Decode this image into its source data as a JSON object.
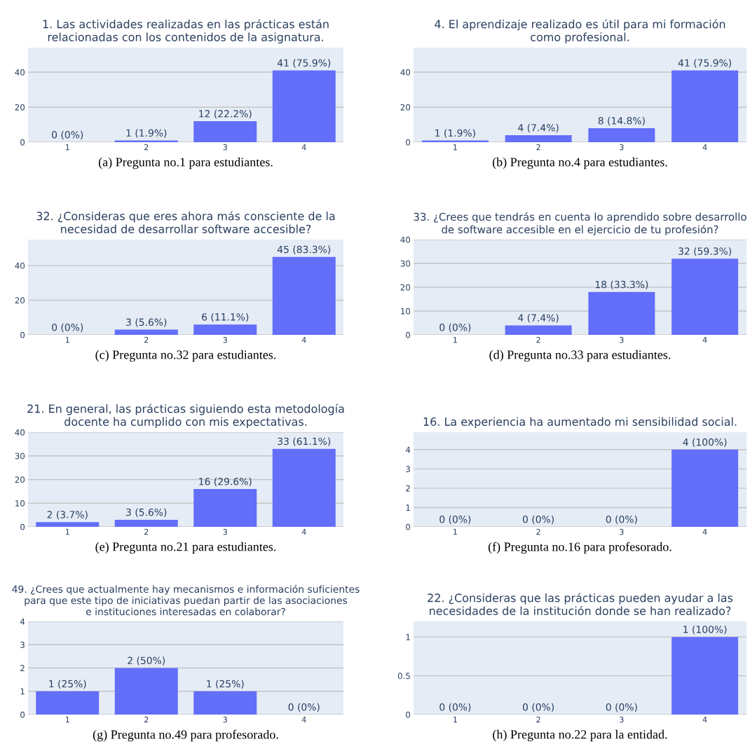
{
  "chart_data": [
    {
      "type": "bar",
      "title": "1. Las actividades realizadas en las prácticas están\nrelacionadas con los contenidos de la asignatura.",
      "categories": [
        "1",
        "2",
        "3",
        "4"
      ],
      "values": [
        0,
        1,
        12,
        41
      ],
      "value_labels": [
        "0 (0%)",
        "1 (1.9%)",
        "12 (22.2%)",
        "41 (75.9%)"
      ],
      "color": "#636efa",
      "ylim": [
        0,
        54
      ],
      "yticks": [
        0,
        20,
        40
      ],
      "grid": "y",
      "annotations": [
        "(a) Pregunta no.1 para estudiantes."
      ]
    },
    {
      "type": "bar",
      "title": "4. El aprendizaje realizado es útil para mi formación\ncomo profesional.",
      "categories": [
        "1",
        "2",
        "3",
        "4"
      ],
      "values": [
        1,
        4,
        8,
        41
      ],
      "value_labels": [
        "1 (1.9%)",
        "4 (7.4%)",
        "8 (14.8%)",
        "41 (75.9%)"
      ],
      "color": "#636efa",
      "ylim": [
        0,
        54
      ],
      "yticks": [
        0,
        20,
        40
      ],
      "grid": "y",
      "annotations": [
        "(b) Pregunta no.4 para estudiantes."
      ]
    },
    {
      "type": "bar",
      "title": "32. ¿Consideras que eres ahora más consciente de la\nnecesidad de desarrollar software accesible?",
      "categories": [
        "1",
        "2",
        "3",
        "4"
      ],
      "values": [
        0,
        3,
        6,
        45
      ],
      "value_labels": [
        "0 (0%)",
        "3 (5.6%)",
        "6 (11.1%)",
        "45 (83.3%)"
      ],
      "color": "#636efa",
      "ylim": [
        0,
        55
      ],
      "yticks": [
        0,
        20,
        40
      ],
      "grid": "y",
      "annotations": [
        "(c) Pregunta no.32 para estudiantes."
      ]
    },
    {
      "type": "bar",
      "title": "33. ¿Crees que tendrás en cuenta lo aprendido sobre desarrollo\nde software accesible en el ejercicio de tu profesión?",
      "categories": [
        "1",
        "2",
        "3",
        "4"
      ],
      "values": [
        0,
        4,
        18,
        32
      ],
      "value_labels": [
        "0 (0%)",
        "4 (7.4%)",
        "18 (33.3%)",
        "32 (59.3%)"
      ],
      "color": "#636efa",
      "ylim": [
        0,
        40
      ],
      "yticks": [
        0,
        10,
        20,
        30,
        40
      ],
      "grid": "y",
      "annotations": [
        "(d) Pregunta no.33 para estudiantes."
      ]
    },
    {
      "type": "bar",
      "title": "21. En general, las prácticas siguiendo esta metodología\ndocente ha cumplido con mis expectativas.",
      "categories": [
        "1",
        "2",
        "3",
        "4"
      ],
      "values": [
        2,
        3,
        16,
        33
      ],
      "value_labels": [
        "2 (3.7%)",
        "3 (5.6%)",
        "16 (29.6%)",
        "33 (61.1%)"
      ],
      "color": "#636efa",
      "ylim": [
        0,
        40
      ],
      "yticks": [
        0,
        10,
        20,
        30,
        40
      ],
      "grid": "y",
      "annotations": [
        "(e) Pregunta no.21 para estudiantes."
      ]
    },
    {
      "type": "bar",
      "title": "16. La experiencia ha aumentado mi sensibilidad social.",
      "categories": [
        "1",
        "2",
        "3",
        "4"
      ],
      "values": [
        0,
        0,
        0,
        4
      ],
      "value_labels": [
        "0 (0%)",
        "0 (0%)",
        "0 (0%)",
        "4 (100%)"
      ],
      "color": "#636efa",
      "ylim": [
        0,
        4.9
      ],
      "yticks": [
        0,
        1,
        2,
        3,
        4
      ],
      "grid": "y",
      "annotations": [
        "(f) Pregunta no.16 para profesorado."
      ]
    },
    {
      "type": "bar",
      "title": "49. ¿Crees que actualmente hay mecanismos e información suficientes\npara que este tipo de iniciativas puedan partir de las asociaciones\ne instituciones interesadas en colaborar?",
      "categories": [
        "1",
        "2",
        "3",
        "4"
      ],
      "values": [
        1,
        2,
        1,
        0
      ],
      "value_labels": [
        "1 (25%)",
        "2 (50%)",
        "1 (25%)",
        "0 (0%)"
      ],
      "color": "#636efa",
      "ylim": [
        0,
        4
      ],
      "yticks": [
        0,
        1,
        2,
        3,
        4
      ],
      "grid": "y",
      "annotations": [
        "(g) Pregunta no.49 para profesorado."
      ]
    },
    {
      "type": "bar",
      "title": "22. ¿Consideras que las prácticas pueden ayudar a las\nnecesidades de la institución donde se han realizado?",
      "categories": [
        "1",
        "2",
        "3",
        "4"
      ],
      "values": [
        0,
        0,
        0,
        1
      ],
      "value_labels": [
        "0 (0%)",
        "0 (0%)",
        "0 (0%)",
        "1 (100%)"
      ],
      "color": "#636efa",
      "ylim": [
        0,
        1.2
      ],
      "yticks": [
        0,
        0.5,
        1
      ],
      "grid": "y",
      "annotations": [
        "(h) Pregunta no.22 para la entidad."
      ]
    }
  ]
}
